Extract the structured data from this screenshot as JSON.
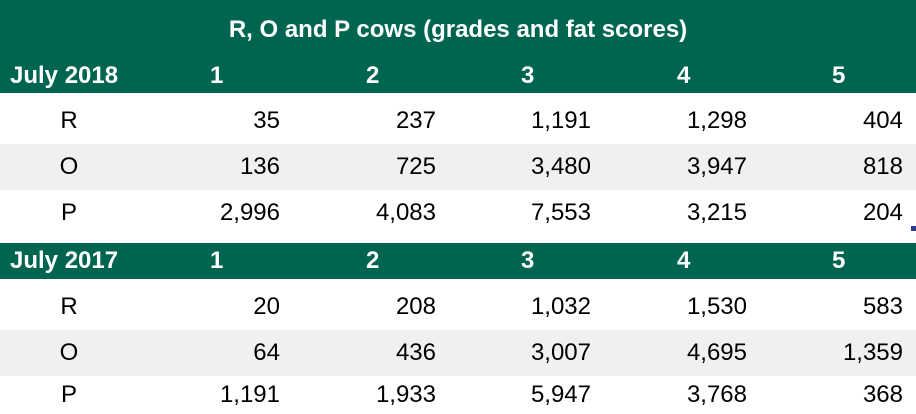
{
  "title": "R, O and P cows (grades and fat scores)",
  "sections": [
    {
      "label": "July 2018",
      "columns": [
        "1",
        "2",
        "3",
        "4",
        "5"
      ],
      "rows": [
        {
          "grade": "R",
          "values": [
            "35",
            "237",
            "1,191",
            "1,298",
            "404"
          ]
        },
        {
          "grade": "O",
          "values": [
            "136",
            "725",
            "3,480",
            "3,947",
            "818"
          ]
        },
        {
          "grade": "P",
          "values": [
            "2,996",
            "4,083",
            "7,553",
            "3,215",
            "204"
          ]
        }
      ]
    },
    {
      "label": "July 2017",
      "columns": [
        "1",
        "2",
        "3",
        "4",
        "5"
      ],
      "rows": [
        {
          "grade": "R",
          "values": [
            "20",
            "208",
            "1,032",
            "1,530",
            "583"
          ]
        },
        {
          "grade": "O",
          "values": [
            "64",
            "436",
            "3,007",
            "4,695",
            "1,359"
          ]
        },
        {
          "grade": "P",
          "values": [
            "1,191",
            "1,933",
            "5,947",
            "3,768",
            "368"
          ]
        }
      ]
    }
  ],
  "colors": {
    "header_green": "#006550",
    "shade_gray": "#f0f0f0"
  }
}
